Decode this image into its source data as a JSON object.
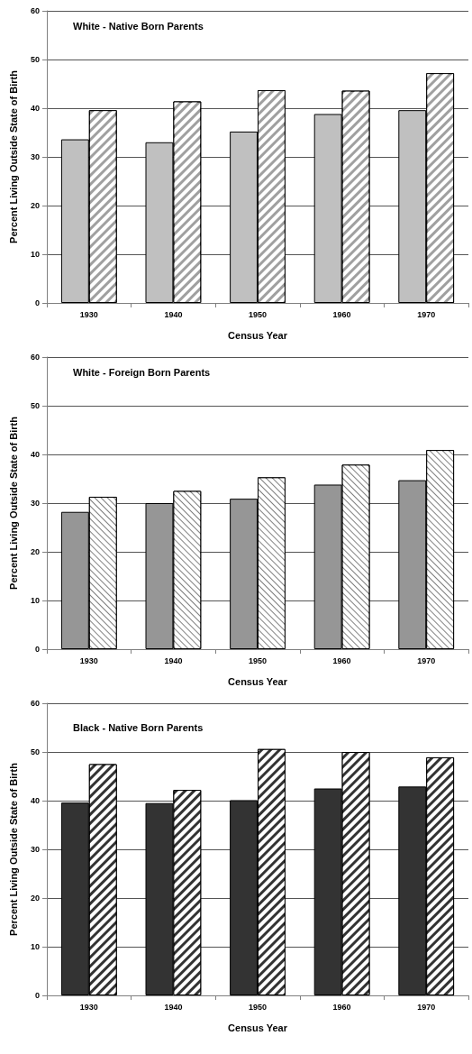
{
  "chart_data": [
    {
      "type": "bar",
      "title": "White - Native Born Parents",
      "xlabel": "Census Year",
      "ylabel": "Percent Living Outside State of Birth",
      "categories": [
        "1930",
        "1940",
        "1950",
        "1960",
        "1970"
      ],
      "series": [
        {
          "color": "#c0c0c0",
          "values": [
            33.6,
            33.0,
            35.2,
            38.8,
            39.6
          ]
        },
        {
          "color": "#a0a0a0",
          "values": [
            39.6,
            41.4,
            43.7,
            43.6,
            47.2
          ]
        }
      ],
      "ylim": [
        0,
        60
      ],
      "yticks": [
        0,
        10,
        20,
        30,
        40,
        50,
        60
      ],
      "grid": "y"
    },
    {
      "type": "bar",
      "title": "White - Foreign Born Parents",
      "xlabel": "Census Year",
      "ylabel": "Percent Living Outside State of Birth",
      "categories": [
        "1930",
        "1940",
        "1950",
        "1960",
        "1970"
      ],
      "series": [
        {
          "color": "#969696",
          "values": [
            28.2,
            30.0,
            30.9,
            33.8,
            34.7
          ]
        },
        {
          "color": "#808080",
          "values": [
            31.3,
            32.5,
            35.3,
            37.9,
            40.9
          ]
        }
      ],
      "ylim": [
        0,
        60
      ],
      "yticks": [
        0,
        10,
        20,
        30,
        40,
        50,
        60
      ],
      "grid": "y"
    },
    {
      "type": "bar",
      "title": "Black - Native Born Parents",
      "xlabel": "Census Year",
      "ylabel": "Percent Living Outside State of Birth",
      "categories": [
        "1930",
        "1940",
        "1950",
        "1960",
        "1970"
      ],
      "series": [
        {
          "color": "#333333",
          "values": [
            39.6,
            39.5,
            40.1,
            42.5,
            42.9
          ]
        },
        {
          "color": "#333333",
          "values": [
            47.5,
            42.2,
            50.6,
            50.0,
            48.9
          ]
        }
      ],
      "ylim": [
        0,
        60
      ],
      "yticks": [
        0,
        10,
        20,
        30,
        40,
        50,
        60
      ],
      "grid": "y"
    }
  ]
}
